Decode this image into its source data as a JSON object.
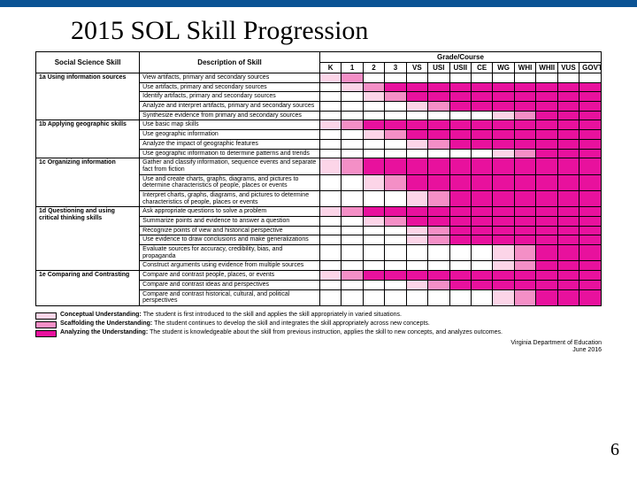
{
  "title": "2015 SOL Skill Progression",
  "headers": {
    "skill": "Social Science Skill",
    "desc": "Description of Skill",
    "grade_course": "Grade/Course",
    "cols": [
      "K",
      "1",
      "2",
      "3",
      "VS",
      "USI",
      "USII",
      "CE",
      "WG",
      "WHI",
      "WHII",
      "VUS",
      "GOVT"
    ]
  },
  "colors": {
    "c1": "#fcd5e8",
    "c2": "#f48fc6",
    "c3": "#e8119d"
  },
  "skills": [
    {
      "label": "1a  Using information sources",
      "rows": [
        {
          "d": "View artifacts, primary and secondary sources",
          "s": [
            1,
            2,
            0,
            0,
            0,
            0,
            0,
            0,
            0,
            0,
            0,
            0,
            0
          ]
        },
        {
          "d": "Use artifacts, primary and secondary sources",
          "s": [
            0,
            1,
            2,
            3,
            3,
            3,
            3,
            3,
            3,
            3,
            3,
            3,
            3
          ]
        },
        {
          "d": "Identify artifacts, primary and secondary sources",
          "s": [
            0,
            0,
            1,
            2,
            3,
            3,
            3,
            3,
            3,
            3,
            3,
            3,
            3
          ]
        },
        {
          "d": "Analyze and interpret artifacts, primary and secondary sources",
          "s": [
            0,
            0,
            0,
            0,
            1,
            2,
            3,
            3,
            3,
            3,
            3,
            3,
            3
          ]
        },
        {
          "d": "Synthesize evidence from primary and secondary sources",
          "s": [
            0,
            0,
            0,
            0,
            0,
            0,
            0,
            0,
            1,
            2,
            3,
            3,
            3
          ]
        }
      ]
    },
    {
      "label": "1b  Applying geographic skills",
      "rows": [
        {
          "d": "Use basic map skills",
          "s": [
            1,
            2,
            3,
            3,
            3,
            3,
            3,
            3,
            3,
            3,
            3,
            3,
            3
          ]
        },
        {
          "d": "Use geographic information",
          "s": [
            0,
            0,
            1,
            2,
            3,
            3,
            3,
            3,
            3,
            3,
            3,
            3,
            3
          ]
        },
        {
          "d": "Analyze the impact of geographic features",
          "s": [
            0,
            0,
            0,
            0,
            1,
            2,
            3,
            3,
            3,
            3,
            3,
            3,
            3
          ]
        },
        {
          "d": "Use geographic information to determine patterns and trends",
          "s": [
            0,
            0,
            0,
            0,
            0,
            0,
            0,
            0,
            1,
            2,
            3,
            3,
            3
          ]
        }
      ]
    },
    {
      "label": "1c  Organizing information",
      "rows": [
        {
          "d": "Gather and classify information, sequence events and separate fact from fiction",
          "s": [
            1,
            2,
            3,
            3,
            3,
            3,
            3,
            3,
            3,
            3,
            3,
            3,
            3
          ]
        },
        {
          "d": "Use and create charts, graphs, diagrams, and pictures to determine characteristics of people, places or events",
          "s": [
            0,
            0,
            1,
            2,
            3,
            3,
            3,
            3,
            3,
            3,
            3,
            3,
            3
          ]
        },
        {
          "d": "Interpret charts, graphs, diagrams, and pictures to determine characteristics of people, places or events",
          "s": [
            0,
            0,
            0,
            0,
            1,
            2,
            3,
            3,
            3,
            3,
            3,
            3,
            3
          ]
        }
      ]
    },
    {
      "label": "1d  Questioning and using critical thinking skills",
      "rows": [
        {
          "d": "Ask appropriate questions to solve a problem",
          "s": [
            1,
            2,
            3,
            3,
            3,
            3,
            3,
            3,
            3,
            3,
            3,
            3,
            3
          ]
        },
        {
          "d": "Summarize points and evidence to answer a question",
          "s": [
            0,
            0,
            1,
            2,
            3,
            3,
            3,
            3,
            3,
            3,
            3,
            3,
            3
          ]
        },
        {
          "d": "Recognize points of view and historical perspective",
          "s": [
            0,
            0,
            0,
            0,
            1,
            2,
            3,
            3,
            3,
            3,
            3,
            3,
            3
          ]
        },
        {
          "d": "Use evidence to draw conclusions and make generalizations",
          "s": [
            0,
            0,
            0,
            0,
            1,
            2,
            3,
            3,
            3,
            3,
            3,
            3,
            3
          ]
        },
        {
          "d": "Evaluate sources for accuracy, credibility, bias, and propaganda",
          "s": [
            0,
            0,
            0,
            0,
            0,
            0,
            0,
            0,
            1,
            2,
            3,
            3,
            3
          ]
        },
        {
          "d": "Construct arguments using evidence from multiple sources",
          "s": [
            0,
            0,
            0,
            0,
            0,
            0,
            0,
            0,
            1,
            2,
            3,
            3,
            3
          ]
        }
      ]
    },
    {
      "label": "1e  Comparing and Contrasting",
      "rows": [
        {
          "d": "Compare and contrast people, places, or events",
          "s": [
            1,
            2,
            3,
            3,
            3,
            3,
            3,
            3,
            3,
            3,
            3,
            3,
            3
          ]
        },
        {
          "d": "Compare and contrast ideas and perspectives",
          "s": [
            0,
            0,
            0,
            0,
            1,
            2,
            3,
            3,
            3,
            3,
            3,
            3,
            3
          ]
        },
        {
          "d": "Compare and contrast historical, cultural, and political perspectives",
          "s": [
            0,
            0,
            0,
            0,
            0,
            0,
            0,
            0,
            1,
            2,
            3,
            3,
            3
          ]
        }
      ]
    }
  ],
  "legend": [
    {
      "c": "c1",
      "t": "Conceptual Understanding: The student is first introduced to the skill and applies the skill appropriately in varied situations."
    },
    {
      "c": "c2",
      "t": "Scaffolding the Understanding: The student continues to develop the skill and integrates the skill appropriately across new concepts."
    },
    {
      "c": "c3",
      "t": "Analyzing the Understanding: The student is knowledgeable about the skill from previous instruction, applies the skill to new concepts, and analyzes outcomes."
    }
  ],
  "footer": {
    "org": "Virginia Department of Education",
    "date": "June 2016"
  },
  "page_num": "6"
}
